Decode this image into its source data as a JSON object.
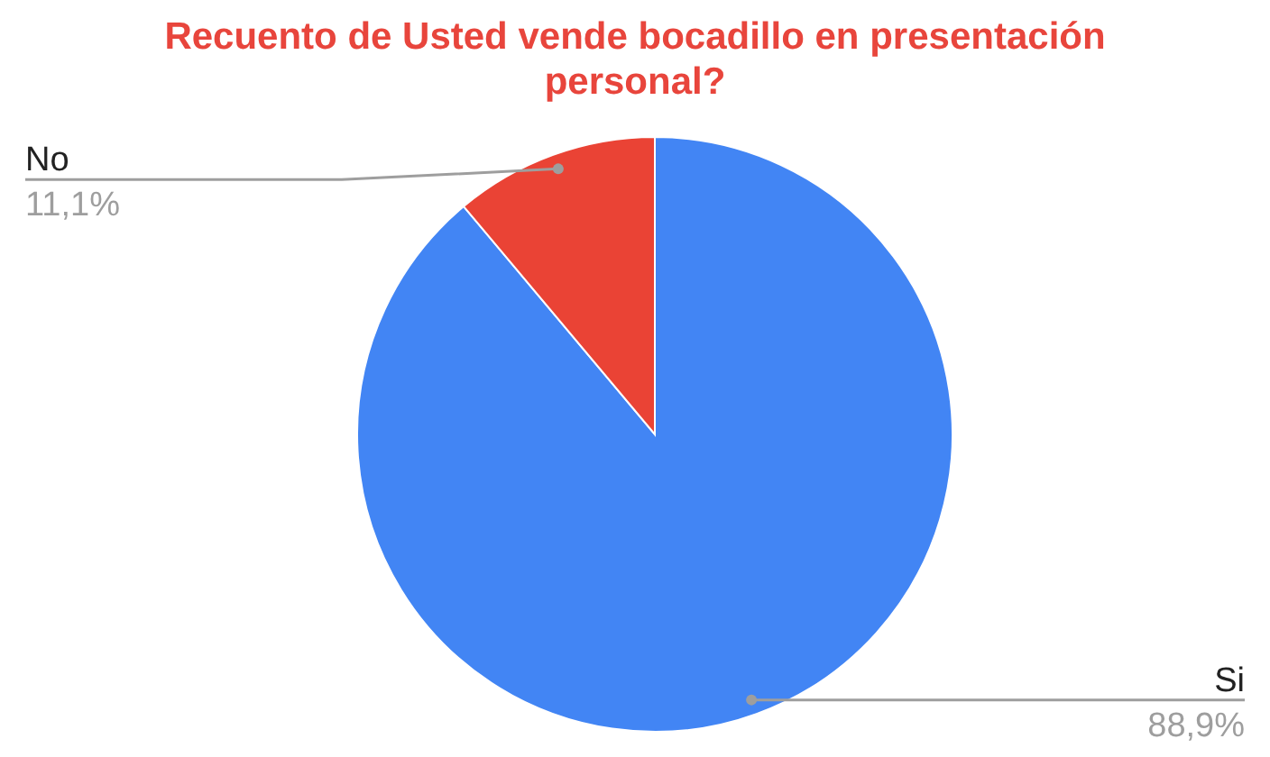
{
  "chart_data": {
    "type": "pie",
    "title": "Recuento de Usted vende bocadillo en presentación personal?",
    "categories": [
      "Si",
      "No"
    ],
    "values": [
      88.9,
      11.1
    ],
    "value_labels": [
      "88,9%",
      "11,1%"
    ],
    "colors": [
      "#4285f4",
      "#ea4335"
    ]
  }
}
